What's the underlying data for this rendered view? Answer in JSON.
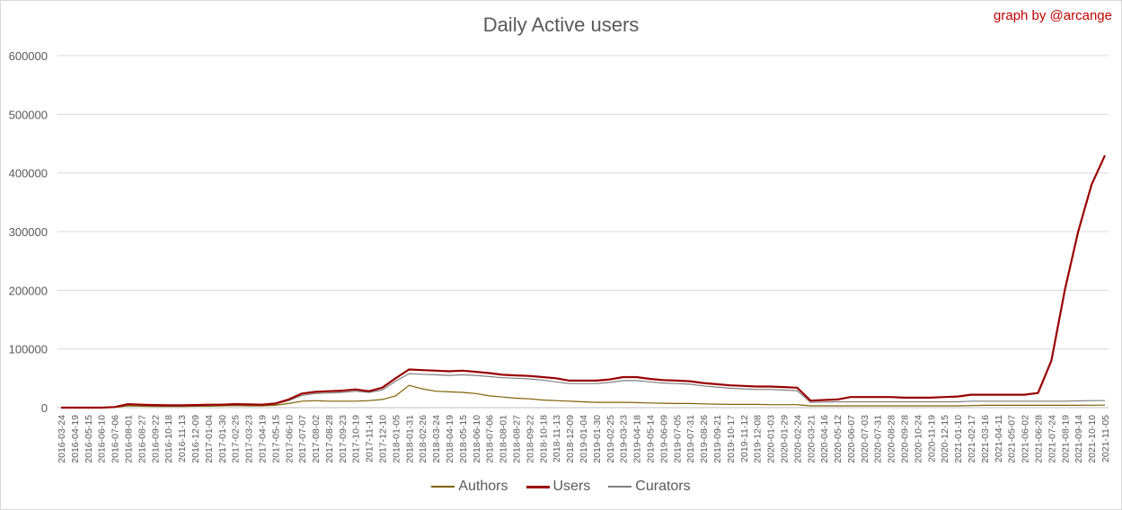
{
  "chart_data": {
    "type": "line",
    "title": "Daily Active users",
    "credit": "graph by @arcange",
    "xlabel": "",
    "ylabel": "",
    "ylim": [
      0,
      600000
    ],
    "yticks": [
      "0",
      "100000",
      "200000",
      "300000",
      "400000",
      "500000",
      "600000"
    ],
    "x_ticks": [
      "2016-03-24",
      "2016-04-19",
      "2016-05-15",
      "2016-06-10",
      "2016-07-06",
      "2016-08-01",
      "2016-08-27",
      "2016-09-22",
      "2016-10-18",
      "2016-11-13",
      "2016-12-09",
      "2017-01-04",
      "2017-01-30",
      "2017-02-25",
      "2017-03-23",
      "2017-04-19",
      "2017-05-15",
      "2017-06-10",
      "2017-07-07",
      "2017-08-02",
      "2017-08-28",
      "2017-09-23",
      "2017-10-19",
      "2017-11-14",
      "2017-12-10",
      "2018-01-05",
      "2018-01-31",
      "2018-02-26",
      "2018-03-24",
      "2018-04-19",
      "2018-05-15",
      "2018-06-10",
      "2018-07-06",
      "2018-08-01",
      "2018-08-27",
      "2018-09-22",
      "2018-10-18",
      "2018-11-13",
      "2018-12-09",
      "2019-01-04",
      "2019-01-30",
      "2019-02-25",
      "2019-03-23",
      "2019-04-18",
      "2019-05-14",
      "2019-06-09",
      "2019-07-05",
      "2019-07-31",
      "2019-08-26",
      "2019-09-21",
      "2019-10-17",
      "2019-11-12",
      "2019-12-08",
      "2020-01-03",
      "2020-01-29",
      "2020-02-24",
      "2020-03-21",
      "2020-04-16",
      "2020-05-12",
      "2020-06-07",
      "2020-07-03",
      "2020-07-31",
      "2020-08-28",
      "2020-09-28",
      "2020-10-24",
      "2020-11-19",
      "2020-12-15",
      "2021-01-10",
      "2021-02-17",
      "2021-03-16",
      "2021-04-11",
      "2021-05-07",
      "2021-06-02",
      "2021-06-28",
      "2021-07-24",
      "2021-08-19",
      "2021-09-14",
      "2021-10-10",
      "2021-11-05"
    ],
    "grid": true,
    "legend_position": "bottom",
    "series": [
      {
        "name": "Authors",
        "color": "#7f6000",
        "values": [
          0,
          0,
          0,
          0,
          500,
          3000,
          2500,
          2000,
          2000,
          2000,
          2500,
          2500,
          3000,
          3500,
          3000,
          3000,
          4000,
          7000,
          11000,
          12000,
          11000,
          11000,
          11000,
          12000,
          14000,
          20000,
          38000,
          32000,
          28000,
          27000,
          26000,
          24000,
          20000,
          18000,
          16000,
          15000,
          13000,
          12000,
          11000,
          10000,
          9000,
          9000,
          9000,
          8500,
          8000,
          7500,
          7000,
          7000,
          6500,
          6000,
          5500,
          5500,
          5500,
          5000,
          5000,
          5000,
          3000,
          3000,
          3000,
          3000,
          3000,
          3000,
          3000,
          3000,
          3000,
          3000,
          3000,
          3000,
          3500,
          4000,
          4000,
          4000,
          4000,
          4000,
          4000,
          4000,
          4000,
          4200,
          4300
        ]
      },
      {
        "name": "Users",
        "color": "#990000",
        "values": [
          0,
          0,
          0,
          0,
          1000,
          6000,
          5000,
          4500,
          4000,
          4000,
          4500,
          5000,
          5000,
          6000,
          5500,
          5000,
          7000,
          14000,
          24000,
          27000,
          28000,
          29000,
          31000,
          28000,
          34000,
          50000,
          65000,
          64000,
          63000,
          62000,
          63000,
          61000,
          59000,
          56000,
          55000,
          54000,
          52000,
          50000,
          46000,
          46000,
          46000,
          48000,
          52000,
          52000,
          49000,
          47000,
          46000,
          45000,
          42000,
          40000,
          38000,
          37000,
          36000,
          36000,
          35000,
          34000,
          12000,
          13000,
          14000,
          18000,
          18000,
          18000,
          18000,
          17000,
          17000,
          17000,
          18000,
          19000,
          22000,
          22000,
          22000,
          22000,
          22000,
          25000,
          80000,
          200000,
          300000,
          380000,
          430000
        ]
      },
      {
        "name": "Curators",
        "color": "#7f7f7f",
        "values": [
          0,
          0,
          0,
          0,
          800,
          5000,
          4000,
          4000,
          3500,
          3500,
          4000,
          4500,
          4500,
          5000,
          5000,
          4500,
          6000,
          12000,
          21000,
          24000,
          25000,
          26000,
          28000,
          26000,
          30000,
          45000,
          58000,
          57000,
          56000,
          55000,
          56000,
          55000,
          53000,
          51000,
          50000,
          49000,
          47000,
          44000,
          41000,
          41000,
          41000,
          43000,
          46000,
          46000,
          44000,
          42000,
          41000,
          40000,
          37000,
          35000,
          33000,
          32000,
          31000,
          31000,
          30000,
          29000,
          9000,
          9500,
          10000,
          10000,
          10000,
          10000,
          10000,
          10000,
          10000,
          10000,
          10000,
          10000,
          11000,
          11000,
          11000,
          11000,
          11000,
          11000,
          11000,
          11000,
          11500,
          12000,
          12000
        ]
      }
    ]
  }
}
